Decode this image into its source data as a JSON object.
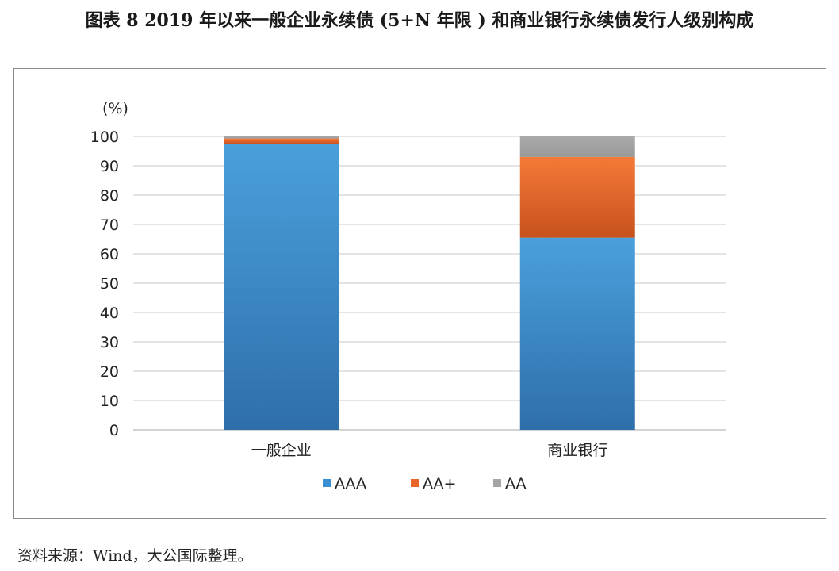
{
  "figure": {
    "title": "图表 8  2019 年以来一般企业永续债 (5+N 年限 ) 和商业银行永续债发行人级别构成",
    "source": "资料来源：Wind，大公国际整理。"
  },
  "chart_data": {
    "type": "bar",
    "stacked": true,
    "title": "",
    "xlabel": "",
    "ylabel": "(%)",
    "ylim": [
      0,
      100
    ],
    "yticks": [
      0,
      10,
      20,
      30,
      40,
      50,
      60,
      70,
      80,
      90,
      100
    ],
    "grid": true,
    "legend_position": "bottom",
    "categories": [
      "一般企业",
      "商业银行"
    ],
    "series": [
      {
        "name": "AAA",
        "color": "#3a8fd0",
        "values": [
          97.5,
          65.5
        ]
      },
      {
        "name": "AA+",
        "color": "#e8662a",
        "values": [
          1.8,
          27.5
        ]
      },
      {
        "name": "AA",
        "color": "#a5a5a5",
        "values": [
          0.7,
          7.0
        ]
      }
    ]
  }
}
